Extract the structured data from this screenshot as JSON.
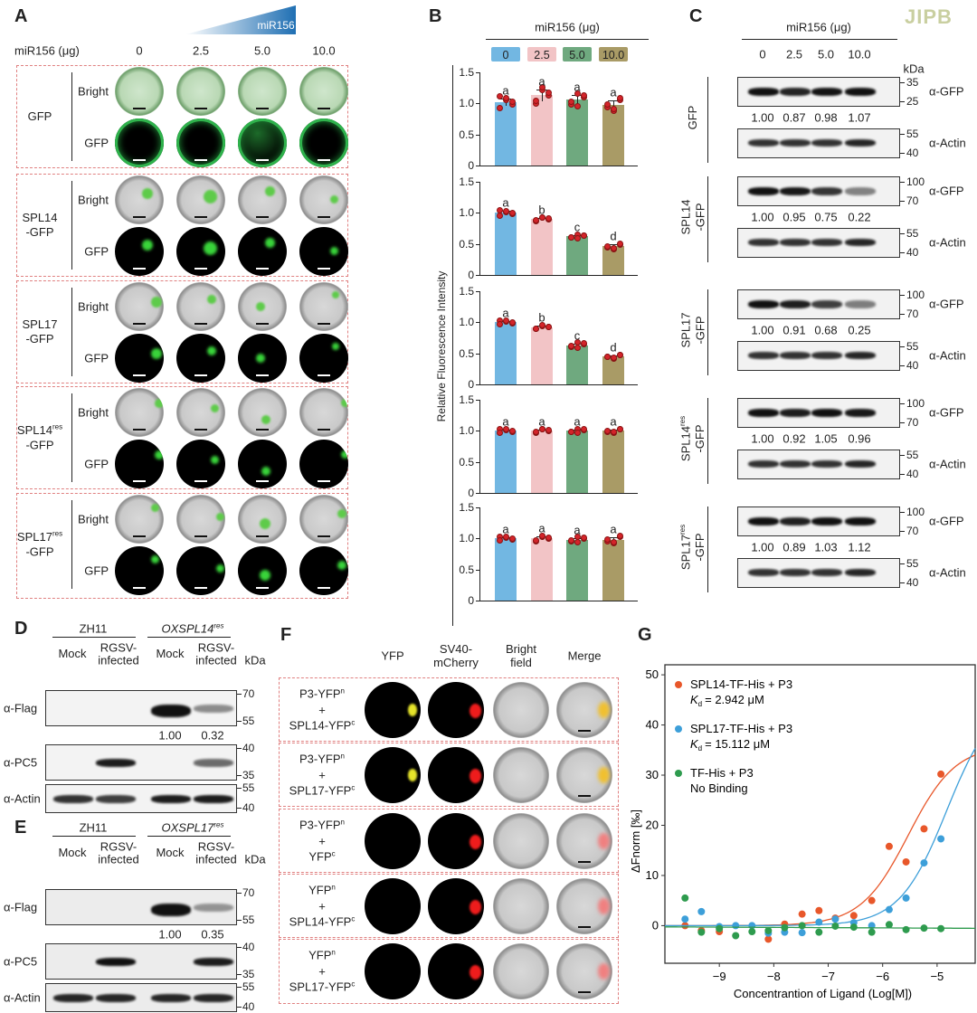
{
  "journal_logo": "JIPB",
  "panelA": {
    "label": "A",
    "gradient_label": "miR156",
    "dose_label": "miR156 (μg)",
    "doses": [
      "0",
      "2.5",
      "5.0",
      "10.0"
    ],
    "row_labels": [
      "Bright",
      "GFP"
    ],
    "groups": [
      {
        "name": "GFP",
        "sup": "",
        "suffix": ""
      },
      {
        "name": "SPL14",
        "sup": "",
        "suffix": "-GFP"
      },
      {
        "name": "SPL17",
        "sup": "",
        "suffix": "-GFP"
      },
      {
        "name": "SPL14",
        "sup": "res",
        "suffix": "-GFP"
      },
      {
        "name": "SPL17",
        "sup": "res",
        "suffix": "-GFP"
      }
    ]
  },
  "panelB": {
    "label": "B",
    "legend_title": "miR156 (μg)",
    "legend": [
      "0",
      "2.5",
      "5.0",
      "10.0"
    ],
    "ylabel": "Relative Fluorescence Intensity",
    "yticks": [
      "1.5",
      "1.0",
      "0.5",
      "0"
    ],
    "colors": [
      "#72b7e2",
      "#f2c4c6",
      "#6fa97f",
      "#a99b66"
    ]
  },
  "panelC": {
    "label": "C",
    "dose_label": "miR156 (μg)",
    "doses": [
      "0",
      "2.5",
      "5.0",
      "10.0"
    ],
    "kda": "kDa",
    "target_antibody": "α-GFP",
    "loading_antibody": "α-Actin",
    "groups": [
      {
        "name": "GFP",
        "sup": "",
        "suffix": "",
        "ratios": [
          "1.00",
          "0.87",
          "0.98",
          "1.07"
        ],
        "markers": [
          "35",
          "25"
        ],
        "actin_markers": [
          "55",
          "40"
        ]
      },
      {
        "name": "SPL14",
        "sup": "",
        "suffix": "-GFP",
        "ratios": [
          "1.00",
          "0.95",
          "0.75",
          "0.22"
        ],
        "markers": [
          "100",
          "70"
        ],
        "actin_markers": [
          "55",
          "40"
        ]
      },
      {
        "name": "SPL17",
        "sup": "",
        "suffix": "-GFP",
        "ratios": [
          "1.00",
          "0.91",
          "0.68",
          "0.25"
        ],
        "markers": [
          "100",
          "70"
        ],
        "actin_markers": [
          "55",
          "40"
        ]
      },
      {
        "name": "SPL14",
        "sup": "res",
        "suffix": "-GFP",
        "ratios": [
          "1.00",
          "0.92",
          "1.05",
          "0.96"
        ],
        "markers": [
          "100",
          "70"
        ],
        "actin_markers": [
          "55",
          "40"
        ]
      },
      {
        "name": "SPL17",
        "sup": "res",
        "suffix": "-GFP",
        "ratios": [
          "1.00",
          "0.89",
          "1.03",
          "1.12"
        ],
        "markers": [
          "100",
          "70"
        ],
        "actin_markers": [
          "55",
          "40"
        ]
      }
    ]
  },
  "panelsDE": [
    {
      "label": "D",
      "wt": "ZH11",
      "line": "OXSPL14",
      "line_sup": "res",
      "lanes": [
        "Mock",
        "RGSV-\ninfected",
        "Mock",
        "RGSV-\ninfected"
      ],
      "kda": "kDa",
      "blots": [
        {
          "antibody": "α-Flag",
          "markers": [
            "70",
            "55"
          ],
          "bands": [
            0,
            0,
            1.0,
            0.45
          ]
        },
        {
          "antibody": "α-PC5",
          "markers": [
            "40",
            "35"
          ],
          "bands": [
            0,
            0.95,
            0,
            0.6
          ]
        },
        {
          "antibody": "α-Actin",
          "markers": [
            "55",
            "40"
          ],
          "bands": [
            0.85,
            0.8,
            0.95,
            0.95
          ]
        }
      ],
      "ratios": [
        "1.00",
        "0.32"
      ]
    },
    {
      "label": "E",
      "wt": "ZH11",
      "line": "OXSPL17",
      "line_sup": "res",
      "lanes": [
        "Mock",
        "RGSV-\ninfected",
        "Mock",
        "RGSV-\ninfected"
      ],
      "kda": "kDa",
      "blots": [
        {
          "antibody": "α-Flag",
          "markers": [
            "70",
            "55"
          ],
          "bands": [
            0,
            0,
            1.0,
            0.4
          ]
        },
        {
          "antibody": "α-PC5",
          "markers": [
            "40",
            "35"
          ],
          "bands": [
            0,
            1.0,
            0,
            0.95
          ]
        },
        {
          "antibody": "α-Actin",
          "markers": [
            "55",
            "40"
          ],
          "bands": [
            0.9,
            0.9,
            0.9,
            0.9
          ]
        }
      ],
      "ratios": [
        "1.00",
        "0.35"
      ]
    }
  ],
  "panelF": {
    "label": "F",
    "columns": [
      "YFP",
      "SV40-\nmCherry",
      "Bright\nfield",
      "Merge"
    ],
    "rows": [
      {
        "line1": "P3-YFP",
        "sup1": "n",
        "plus": "+",
        "line2": "SPL14-YFP",
        "sup2": "c",
        "yfp": true
      },
      {
        "line1": "P3-YFP",
        "sup1": "n",
        "plus": "+",
        "line2": "SPL17-YFP",
        "sup2": "c",
        "yfp": true
      },
      {
        "line1": "P3-YFP",
        "sup1": "n",
        "plus": "+",
        "line2": "YFP",
        "sup2": "c",
        "yfp": false
      },
      {
        "line1": "YFP",
        "sup1": "n",
        "plus": "+",
        "line2": "SPL14-YFP",
        "sup2": "c",
        "yfp": false
      },
      {
        "line1": "YFP",
        "sup1": "n",
        "plus": "+",
        "line2": "SPL17-YFP",
        "sup2": "c",
        "yfp": false
      }
    ]
  },
  "panelG": {
    "label": "G"
  },
  "chart_data": [
    {
      "type": "bar",
      "panel": "B",
      "ylabel": "Relative Fluorescence Intensity",
      "legend_title": "miR156 (μg)",
      "categories": [
        "0",
        "2.5",
        "5.0",
        "10.0"
      ],
      "ylim": [
        0,
        1.5
      ],
      "subplots": [
        {
          "row": "GFP",
          "values": [
            1.02,
            1.13,
            1.06,
            0.98
          ],
          "sd": [
            0.06,
            0.09,
            0.07,
            0.07
          ],
          "letters": [
            "a",
            "a",
            "a",
            "a"
          ]
        },
        {
          "row": "SPL14-GFP",
          "values": [
            1.0,
            0.9,
            0.62,
            0.46
          ],
          "sd": [
            0.03,
            0.02,
            0.02,
            0.03
          ],
          "letters": [
            "a",
            "b",
            "c",
            "d"
          ]
        },
        {
          "row": "SPL17-GFP",
          "values": [
            1.0,
            0.92,
            0.63,
            0.45
          ],
          "sd": [
            0.02,
            0.02,
            0.03,
            0.02
          ],
          "letters": [
            "a",
            "b",
            "c",
            "d"
          ]
        },
        {
          "row": "SPL14res-GFP",
          "values": [
            1.0,
            1.0,
            1.0,
            1.0
          ],
          "sd": [
            0.02,
            0.02,
            0.02,
            0.02
          ],
          "letters": [
            "a",
            "a",
            "a",
            "a"
          ]
        },
        {
          "row": "SPL17res-GFP",
          "values": [
            1.0,
            1.0,
            0.98,
            0.98
          ],
          "sd": [
            0.02,
            0.03,
            0.03,
            0.04
          ],
          "letters": [
            "a",
            "a",
            "a",
            "a"
          ]
        }
      ]
    },
    {
      "type": "scatter",
      "panel": "G",
      "xlabel": "Concentrantion of Ligand (Log[M])",
      "ylabel": "ΔFnorm [‰]",
      "xlim": [
        -10.0,
        -4.3
      ],
      "ylim": [
        -7.5,
        52
      ],
      "xticks": [
        -9,
        -8,
        -7,
        -6,
        -5
      ],
      "yticks": [
        0,
        10,
        20,
        30,
        40,
        50
      ],
      "xtick_labels": [
        "−9",
        "−8",
        "−7",
        "−6",
        "−5"
      ],
      "ytick_labels": [
        "0",
        "10",
        "20",
        "30",
        "40",
        "50"
      ],
      "legend_position": "top-left",
      "series": [
        {
          "name": "SPL14-TF-His + P3",
          "note": "= 2.942 μM",
          "kd_uM": 2.942,
          "fit_amplitude": 36,
          "color": "#e8572a",
          "x": [
            -9.63,
            -9.33,
            -9.0,
            -8.1,
            -7.8,
            -7.48,
            -7.17,
            -6.87,
            -6.53,
            -6.2,
            -5.88,
            -5.57,
            -5.24,
            -4.93
          ],
          "y": [
            0,
            -1,
            -1.2,
            -2.7,
            0.3,
            2.3,
            3.0,
            1.5,
            2.0,
            5.0,
            15.8,
            12.7,
            19.3,
            30.2
          ]
        },
        {
          "name": "SPL17-TF-His + P3",
          "note": "= 15.112 μM",
          "kd_uM": 15.112,
          "fit_amplitude": 46,
          "color": "#3d9fd9",
          "x": [
            -9.63,
            -9.33,
            -9.0,
            -8.7,
            -8.4,
            -8.1,
            -7.8,
            -7.48,
            -7.17,
            -6.87,
            -6.53,
            -6.2,
            -5.88,
            -5.57,
            -5.24,
            -4.93
          ],
          "y": [
            1.3,
            2.8,
            -0.2,
            0,
            0,
            -1.5,
            -1.3,
            -1.4,
            0.7,
            1.3,
            0.6,
            0,
            3.2,
            5.5,
            12.5,
            17.3
          ]
        },
        {
          "name": "TF-His + P3",
          "note": "No Binding",
          "kd_uM": null,
          "fit_amplitude": 0,
          "color": "#2e9b4e",
          "x": [
            -9.63,
            -9.33,
            -9.0,
            -8.7,
            -8.4,
            -8.1,
            -7.8,
            -7.48,
            -7.17,
            -6.87,
            -6.53,
            -6.2,
            -5.88,
            -5.57,
            -5.24,
            -4.93
          ],
          "y": [
            5.5,
            -1.3,
            -0.6,
            -2.0,
            -1.2,
            -1.0,
            -0.4,
            0,
            -1.3,
            -0.1,
            -0.3,
            -1.3,
            0.2,
            -0.8,
            -0.5,
            -0.6
          ]
        }
      ],
      "kd_symbol": "K",
      "kd_sub": "d"
    }
  ]
}
